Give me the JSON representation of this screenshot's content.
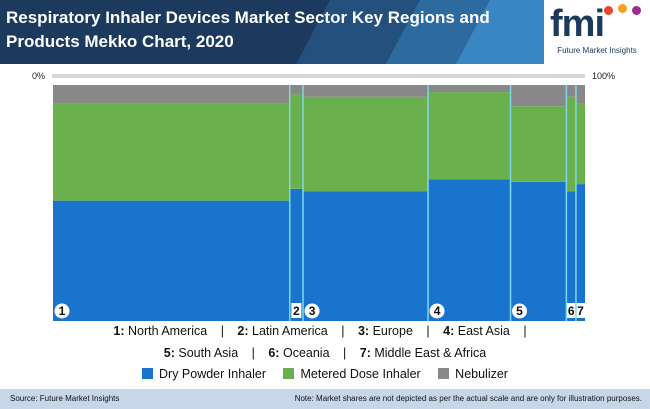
{
  "header": {
    "title": "Respiratory Inhaler Devices Market Sector Key Regions and Products Mekko Chart, 2020",
    "logo_text": "fmi",
    "logo_subtitle": "Future Market Insights"
  },
  "axis": {
    "left_label": "0%",
    "right_label": "100%"
  },
  "colors": {
    "header_bg": "#1b3a5e",
    "dry_powder": "#1874cd",
    "metered_dose": "#6ab04c",
    "nebulizer": "#888888",
    "divider": "#7fd8e8",
    "footer_bg": "#c8d6ea"
  },
  "chart_data": {
    "type": "mekko",
    "title": "Respiratory Inhaler Devices Market Sector Key Regions and Products Mekko Chart, 2020",
    "x_range": [
      0,
      100
    ],
    "y_range": [
      0,
      100
    ],
    "categories": [
      "1",
      "2",
      "3",
      "4",
      "5",
      "6",
      "7"
    ],
    "category_names": [
      "North America",
      "Latin America",
      "Europe",
      "East Asia",
      "South Asia",
      "Oceania",
      "Middle East & Africa"
    ],
    "widths": [
      44.5,
      2.5,
      23.5,
      15.5,
      10.5,
      1.8,
      1.7
    ],
    "series": [
      {
        "name": "Dry Powder Inhaler",
        "values": [
          51,
          56,
          55,
          60,
          59,
          55,
          58
        ]
      },
      {
        "name": "Metered Dose Inhaler",
        "values": [
          41,
          40,
          40,
          37,
          32,
          40,
          34
        ]
      },
      {
        "name": "Nebulizer",
        "values": [
          8,
          4,
          5,
          3,
          9,
          5,
          8
        ]
      }
    ]
  },
  "legend": {
    "regions": [
      {
        "num": "1:",
        "name": "North America"
      },
      {
        "num": "2:",
        "name": "Latin America"
      },
      {
        "num": "3:",
        "name": "Europe"
      },
      {
        "num": "4:",
        "name": "East Asia"
      },
      {
        "num": "5:",
        "name": "South Asia"
      },
      {
        "num": "6:",
        "name": "Oceania"
      },
      {
        "num": "7:",
        "name": "Middle East & Africa"
      }
    ],
    "separator": "|",
    "series": [
      "Dry Powder Inhaler",
      "Metered Dose Inhaler",
      "Nebulizer"
    ]
  },
  "footer": {
    "source": "Source: Future Market Insights",
    "note": "Note: Market shares are not depicted as per the actual scale and are only for illustration purposes."
  }
}
